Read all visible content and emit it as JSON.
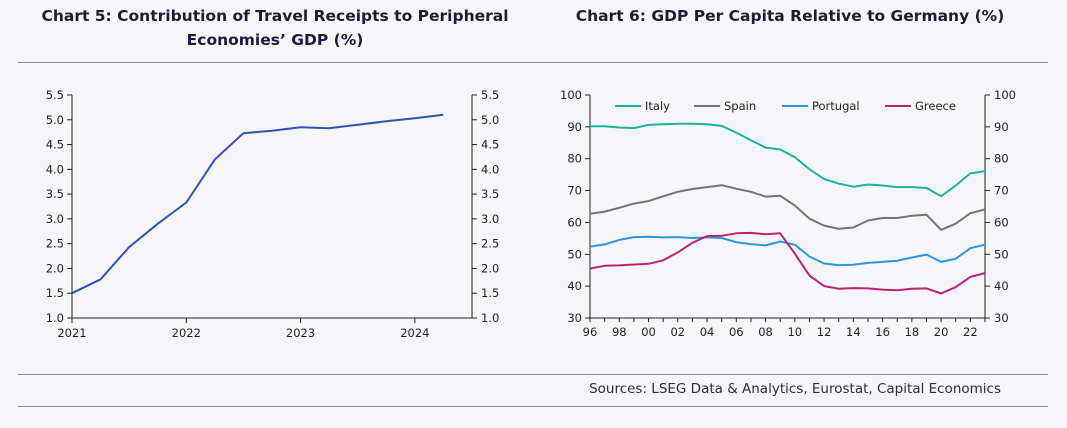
{
  "sources": "Sources: LSEG Data & Analytics, Eurostat, Capital Economics",
  "colors": {
    "blue": "#2f53b4",
    "italy": "#1fb09f",
    "spain": "#747474",
    "portugal": "#2b95e0",
    "greece": "#bd2170",
    "axis": "#222222"
  },
  "chart_data": [
    {
      "type": "line",
      "title": "Chart 5: Contribution of Travel Receipts to Peripheral Economies’ GDP (%)",
      "xlabel": "",
      "ylabel": "",
      "x_ticks": [
        "2021",
        "2022",
        "2023",
        "2024"
      ],
      "y_ticks": [
        "1.0",
        "1.5",
        "2.0",
        "2.5",
        "3.0",
        "3.5",
        "4.0",
        "4.5",
        "5.0",
        "5.5"
      ],
      "ylim": [
        1.0,
        5.5
      ],
      "xlim": [
        2021.0,
        2024.5
      ],
      "secondary_y": true,
      "grid": false,
      "series": [
        {
          "color": "#2f53b4",
          "x": [
            2021.0,
            2021.25,
            2021.5,
            2021.75,
            2022.0,
            2022.25,
            2022.5,
            2022.75,
            2023.0,
            2023.25,
            2023.5,
            2023.75,
            2024.0,
            2024.25
          ],
          "values": [
            1.5,
            1.78,
            2.43,
            2.9,
            3.33,
            4.2,
            4.73,
            4.78,
            4.85,
            4.83,
            4.9,
            4.97,
            5.03,
            5.1
          ]
        }
      ]
    },
    {
      "type": "line",
      "title": "Chart 6: GDP Per Capita Relative to Germany (%)",
      "xlabel": "",
      "ylabel": "",
      "x_ticks": [
        "96",
        "98",
        "00",
        "02",
        "04",
        "06",
        "08",
        "10",
        "12",
        "14",
        "16",
        "18",
        "20",
        "22"
      ],
      "y_ticks": [
        "30",
        "40",
        "50",
        "60",
        "70",
        "80",
        "90",
        "100"
      ],
      "ylim": [
        30,
        100
      ],
      "xlim": [
        1996,
        2023
      ],
      "secondary_y": true,
      "grid": false,
      "legend": "top",
      "x": [
        1996,
        1997,
        1998,
        1999,
        2000,
        2001,
        2002,
        2003,
        2004,
        2005,
        2006,
        2007,
        2008,
        2009,
        2010,
        2011,
        2012,
        2013,
        2014,
        2015,
        2016,
        2017,
        2018,
        2019,
        2020,
        2021,
        2022,
        2023
      ],
      "series": [
        {
          "name": "Italy",
          "color": "#1fb09f",
          "values": [
            90.2,
            90.2,
            89.8,
            89.6,
            90.6,
            90.8,
            91.0,
            91.0,
            90.8,
            90.3,
            88.2,
            85.8,
            83.5,
            82.9,
            80.5,
            76.7,
            73.6,
            72.2,
            71.2,
            71.9,
            71.6,
            71.1,
            71.1,
            70.8,
            68.2,
            71.6,
            75.4,
            76.1
          ]
        },
        {
          "name": "Spain",
          "color": "#747474",
          "values": [
            62.7,
            63.4,
            64.6,
            65.9,
            66.7,
            68.2,
            69.6,
            70.5,
            71.1,
            71.7,
            70.6,
            69.6,
            68.1,
            68.4,
            65.3,
            61.2,
            59.0,
            58.0,
            58.4,
            60.6,
            61.4,
            61.4,
            62.1,
            62.4,
            57.7,
            59.6,
            62.9,
            64.1
          ]
        },
        {
          "name": "Portugal",
          "color": "#2b95e0",
          "values": [
            52.4,
            53.1,
            54.5,
            55.4,
            55.5,
            55.3,
            55.4,
            55.1,
            55.3,
            55.1,
            53.8,
            53.2,
            52.8,
            54.0,
            53.0,
            49.3,
            47.1,
            46.6,
            46.7,
            47.3,
            47.6,
            48.0,
            49.0,
            49.9,
            47.6,
            48.6,
            51.9,
            53.0
          ]
        },
        {
          "name": "Greece",
          "color": "#bd2170",
          "values": [
            45.5,
            46.4,
            46.5,
            46.8,
            47.0,
            48.1,
            50.6,
            53.6,
            55.7,
            55.8,
            56.6,
            56.7,
            56.3,
            56.6,
            50.2,
            43.3,
            40.0,
            39.2,
            39.4,
            39.3,
            38.9,
            38.7,
            39.2,
            39.3,
            37.7,
            39.7,
            42.9,
            44.1
          ]
        }
      ]
    }
  ]
}
